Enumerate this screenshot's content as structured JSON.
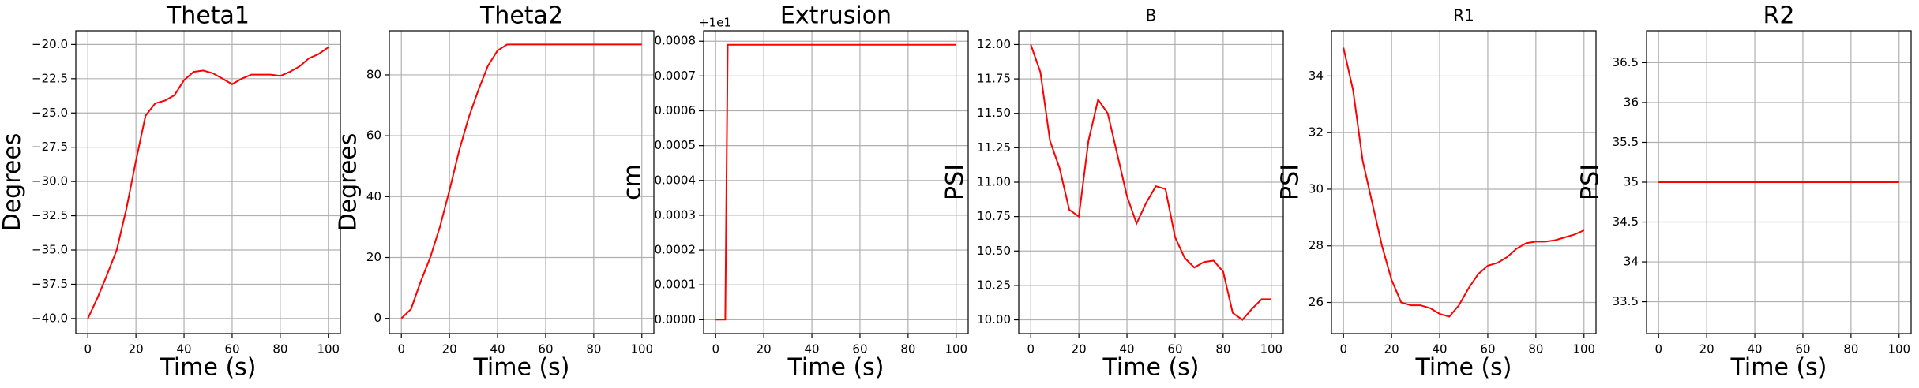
{
  "chart_data": [
    {
      "type": "line",
      "title": "Theta1",
      "xlabel": "Time (s)",
      "ylabel": "Degrees",
      "color": "#ff0000",
      "grid": true,
      "xlim": [
        -5,
        105
      ],
      "xticks": [
        0,
        20,
        40,
        60,
        80,
        100
      ],
      "ylim": [
        -41.1,
        -19.0
      ],
      "yticks": [
        {
          "value": -40,
          "label": "−40.0"
        },
        {
          "value": -37.5,
          "label": "−37.5"
        },
        {
          "value": -35,
          "label": "−35.0"
        },
        {
          "value": -32.5,
          "label": "−32.5"
        },
        {
          "value": -30,
          "label": "−30.0"
        },
        {
          "value": -27.5,
          "label": "−27.5"
        },
        {
          "value": -25,
          "label": "−25.0"
        },
        {
          "value": -22.5,
          "label": "−22.5"
        },
        {
          "value": -20,
          "label": "−20.0"
        }
      ],
      "x": [
        0,
        4,
        8,
        12,
        16,
        20,
        24,
        28,
        32,
        36,
        40,
        44,
        48,
        52,
        56,
        60,
        64,
        68,
        72,
        76,
        80,
        84,
        88,
        92,
        96,
        100
      ],
      "values": [
        -40,
        -38.5,
        -36.8,
        -35,
        -32,
        -28.5,
        -25.2,
        -24.3,
        -24.1,
        -23.7,
        -22.6,
        -22,
        -21.9,
        -22.1,
        -22.5,
        -22.9,
        -22.5,
        -22.2,
        -22.2,
        -22.2,
        -22.3,
        -22,
        -21.6,
        -21,
        -20.7,
        -20.2
      ]
    },
    {
      "type": "line",
      "title": "Theta2",
      "xlabel": "Time (s)",
      "ylabel": "Degrees",
      "color": "#ff0000",
      "grid": true,
      "xlim": [
        -5,
        105
      ],
      "xticks": [
        0,
        20,
        40,
        60,
        80,
        100
      ],
      "ylim": [
        -5,
        94.5
      ],
      "yticks": [
        0,
        20,
        40,
        60,
        80
      ],
      "x": [
        0,
        4,
        8,
        12,
        16,
        20,
        24,
        28,
        32,
        36,
        40,
        44,
        48,
        52,
        56,
        60,
        64,
        68,
        72,
        76,
        80,
        84,
        88,
        92,
        96,
        100
      ],
      "values": [
        0,
        3,
        12,
        20,
        30,
        42,
        55,
        66,
        75,
        83,
        88,
        90,
        90,
        90,
        90,
        90,
        90,
        90,
        90,
        90,
        90,
        90,
        90,
        90,
        90,
        90
      ]
    },
    {
      "type": "line",
      "title": "Extrusion",
      "xlabel": "Time (s)",
      "ylabel": "cm",
      "offset": "+1e1",
      "color": "#ff0000",
      "grid": true,
      "xlim": [
        -5,
        105
      ],
      "xticks": [
        0,
        20,
        40,
        60,
        80,
        100
      ],
      "ylim": [
        -4e-05,
        0.00083
      ],
      "yticks": [
        {
          "value": 0,
          "label": "0.0000"
        },
        {
          "value": 0.0001,
          "label": "0.0001"
        },
        {
          "value": 0.0002,
          "label": "0.0002"
        },
        {
          "value": 0.0003,
          "label": "0.0003"
        },
        {
          "value": 0.0004,
          "label": "0.0004"
        },
        {
          "value": 0.0005,
          "label": "0.0005"
        },
        {
          "value": 0.0006,
          "label": "0.0006"
        },
        {
          "value": 0.0007,
          "label": "0.0007"
        },
        {
          "value": 0.0008,
          "label": "0.0008"
        }
      ],
      "x": [
        0,
        4,
        5,
        100
      ],
      "values": [
        0,
        0,
        0.00079,
        0.00079
      ]
    },
    {
      "type": "line",
      "title": "B",
      "xlabel": "Time (s)",
      "ylabel": "PSI",
      "color": "#ff0000",
      "grid": true,
      "xlim": [
        -5,
        105
      ],
      "xticks": [
        0,
        20,
        40,
        60,
        80,
        100
      ],
      "ylim": [
        9.9,
        12.1
      ],
      "yticks": [
        {
          "value": 10,
          "label": "10.00"
        },
        {
          "value": 10.25,
          "label": "10.25"
        },
        {
          "value": 10.5,
          "label": "10.50"
        },
        {
          "value": 10.75,
          "label": "10.75"
        },
        {
          "value": 11,
          "label": "11.00"
        },
        {
          "value": 11.25,
          "label": "11.25"
        },
        {
          "value": 11.5,
          "label": "11.50"
        },
        {
          "value": 11.75,
          "label": "11.75"
        },
        {
          "value": 12,
          "label": "12.00"
        }
      ],
      "x": [
        0,
        4,
        8,
        12,
        16,
        20,
        24,
        28,
        32,
        36,
        40,
        44,
        48,
        52,
        56,
        60,
        64,
        68,
        72,
        76,
        80,
        84,
        88,
        92,
        96,
        100
      ],
      "values": [
        12,
        11.8,
        11.3,
        11.1,
        10.8,
        10.75,
        11.3,
        11.6,
        11.5,
        11.2,
        10.9,
        10.7,
        10.85,
        10.97,
        10.95,
        10.6,
        10.45,
        10.38,
        10.42,
        10.43,
        10.35,
        10.05,
        10,
        10.08,
        10.15,
        10.15
      ]
    },
    {
      "type": "line",
      "title": "R1",
      "xlabel": "Time (s)",
      "ylabel": "PSI",
      "color": "#ff0000",
      "grid": true,
      "xlim": [
        -5,
        105
      ],
      "xticks": [
        0,
        20,
        40,
        60,
        80,
        100
      ],
      "ylim": [
        24.9,
        35.6
      ],
      "yticks": [
        26,
        28,
        30,
        32,
        34
      ],
      "x": [
        0,
        4,
        8,
        12,
        16,
        20,
        24,
        28,
        32,
        36,
        40,
        44,
        48,
        52,
        56,
        60,
        64,
        68,
        72,
        76,
        80,
        84,
        88,
        92,
        96,
        100
      ],
      "values": [
        35,
        33.5,
        31,
        29.5,
        28,
        26.8,
        26,
        25.9,
        25.9,
        25.8,
        25.6,
        25.5,
        25.9,
        26.5,
        27,
        27.3,
        27.4,
        27.6,
        27.9,
        28.1,
        28.15,
        28.15,
        28.2,
        28.3,
        28.4,
        28.55
      ]
    },
    {
      "type": "line",
      "title": "R2",
      "xlabel": "Time (s)",
      "ylabel": "PSI",
      "color": "#ff0000",
      "grid": true,
      "xlim": [
        -5,
        105
      ],
      "xticks": [
        0,
        20,
        40,
        60,
        80,
        100
      ],
      "ylim": [
        33.1,
        36.9
      ],
      "yticks": [
        33.5,
        34,
        34.5,
        35,
        35.5,
        36,
        36.5
      ],
      "yticklabels_fmt": null,
      "x": [
        0,
        100
      ],
      "values": [
        35,
        35
      ]
    }
  ]
}
